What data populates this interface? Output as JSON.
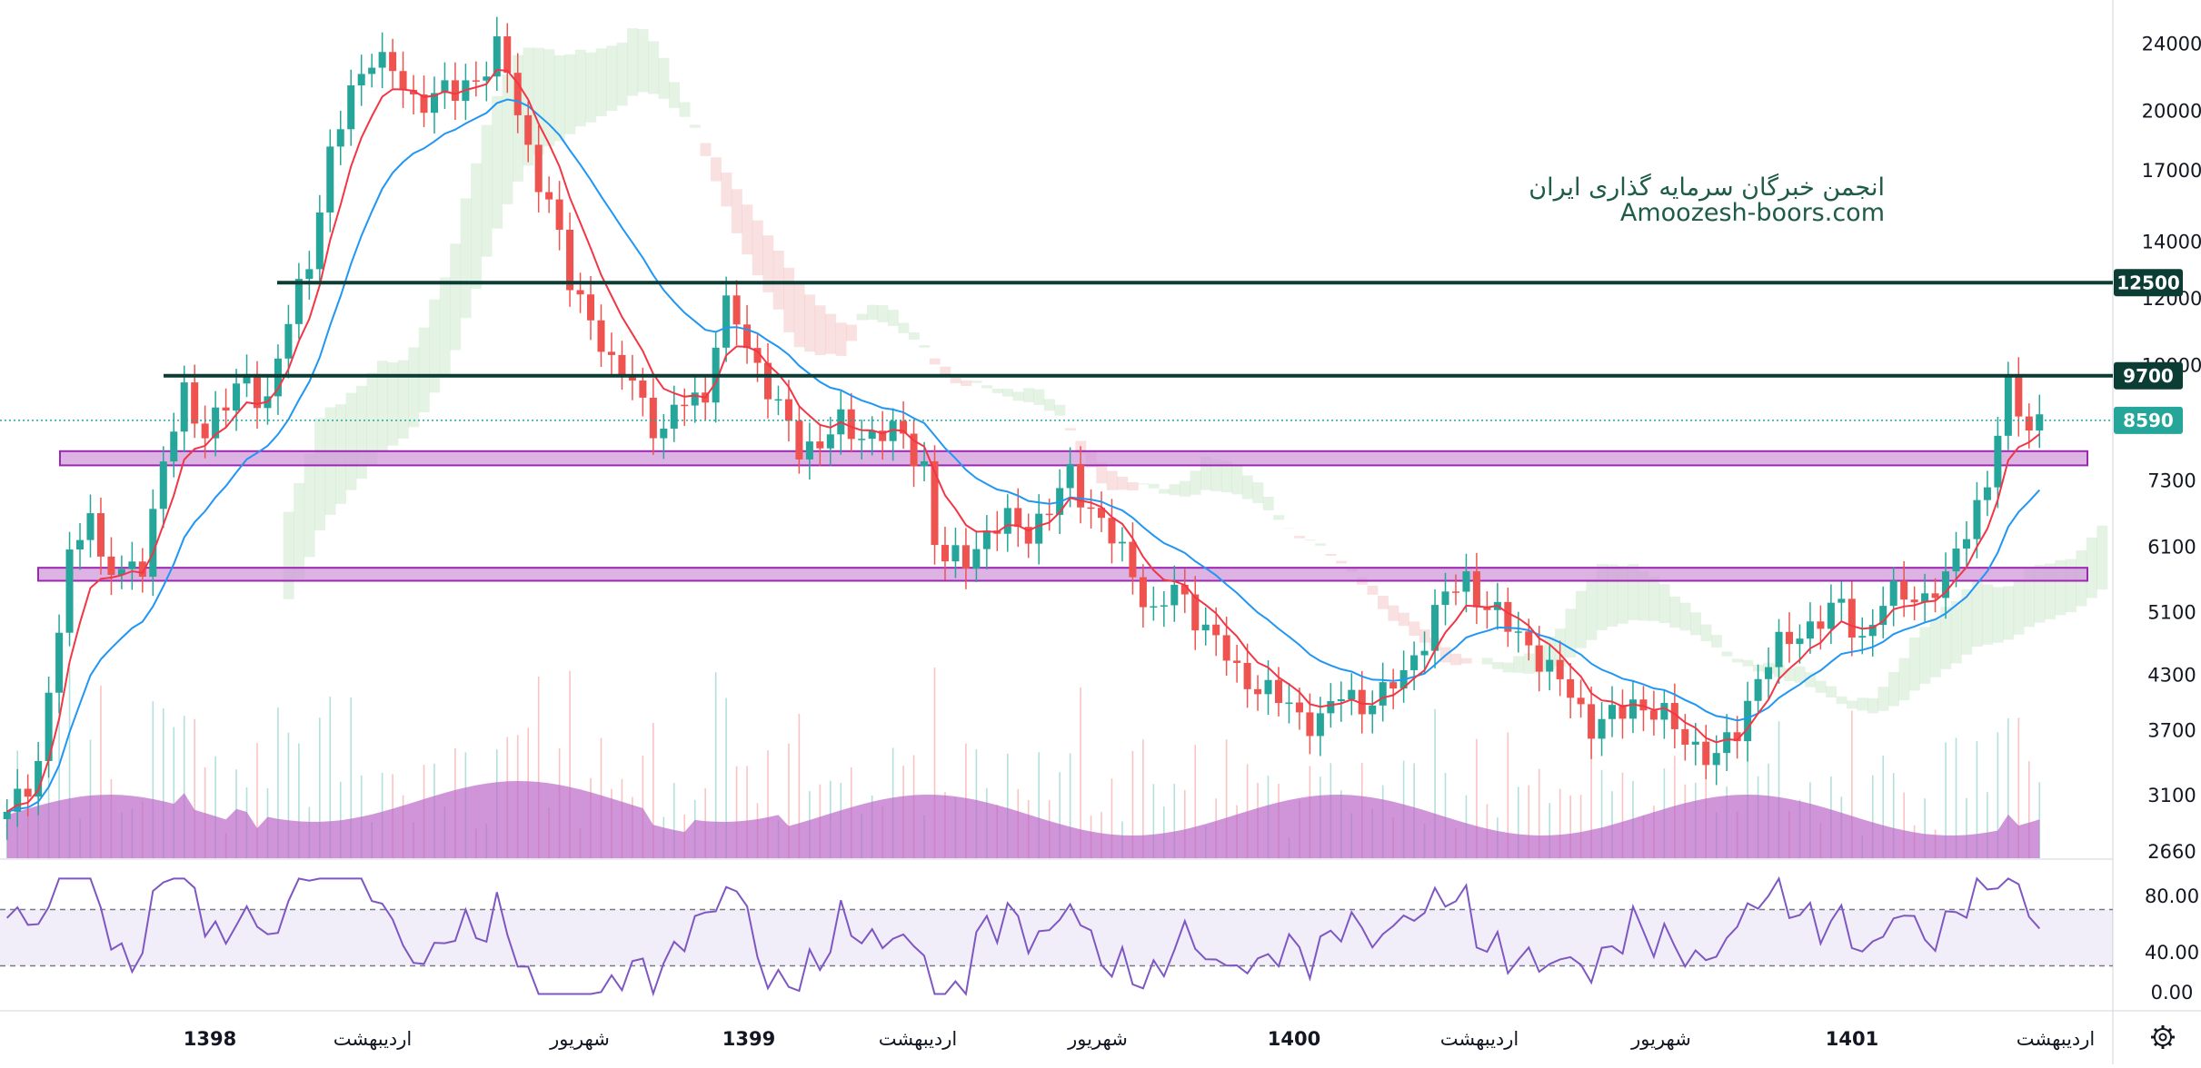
{
  "watermark": {
    "line1": "انجمن خبرگان سرمایه گذاری ایران",
    "line2": "Amoozesh-boors.com"
  },
  "colors": {
    "up": "#26a69a",
    "down": "#ef5350",
    "ema_fast": "#f23645",
    "ema_slow": "#2196f3",
    "resistance": "#0b3d35",
    "zone_fill": "#ce93d8",
    "zone_stroke": "#9c27b0",
    "rsi": "#7e57c2",
    "cloud_green": "#a5d6a7",
    "cloud_red": "#ef9a9a",
    "volume_ma": "#ba68c8",
    "last_price": "#26a69a"
  },
  "price_axis": {
    "ticks": [
      "24000",
      "20000",
      "17000",
      "14000",
      "12000",
      "10000",
      "8590",
      "7300",
      "6100",
      "5100",
      "4300",
      "3700",
      "3100",
      "2660"
    ]
  },
  "badges": [
    {
      "label": "12500",
      "kind": "resistance"
    },
    {
      "label": "9700",
      "kind": "resistance"
    },
    {
      "label": "8590",
      "kind": "last"
    }
  ],
  "rsi_axis": {
    "ticks": [
      "80.00",
      "40.00",
      "0.00"
    ]
  },
  "time_axis": {
    "labels": [
      "1398",
      "اردیبهشت",
      "شهریور",
      "1399",
      "اردیبهشت",
      "شهریور",
      "1400",
      "اردیبهشت",
      "شهریور",
      "1401",
      "اردیبهشت"
    ]
  },
  "chart_data": {
    "type": "candlestick",
    "scale": "log",
    "ylim": [
      2600,
      27000
    ],
    "levels": [
      {
        "name": "resistance",
        "value": 12500
      },
      {
        "name": "resistance",
        "value": 9700
      }
    ],
    "zones": [
      {
        "low": 7600,
        "high": 7900
      },
      {
        "low": 5550,
        "high": 5750
      }
    ],
    "last_price": 8590,
    "price_path": [
      [
        0,
        2900
      ],
      [
        3,
        3400
      ],
      [
        6,
        5800
      ],
      [
        8,
        6900
      ],
      [
        9,
        5800
      ],
      [
        11,
        5600
      ],
      [
        13,
        5900
      ],
      [
        15,
        7600
      ],
      [
        17,
        9200
      ],
      [
        19,
        8400
      ],
      [
        21,
        8900
      ],
      [
        23,
        9700
      ],
      [
        25,
        9000
      ],
      [
        27,
        11200
      ],
      [
        29,
        13500
      ],
      [
        31,
        17500
      ],
      [
        33,
        21000
      ],
      [
        35,
        23500
      ],
      [
        37,
        22000
      ],
      [
        39,
        20500
      ],
      [
        41,
        21000
      ],
      [
        43,
        20800
      ],
      [
        45,
        22000
      ],
      [
        47,
        23500
      ],
      [
        48,
        22000
      ],
      [
        50,
        18000
      ],
      [
        52,
        15500
      ],
      [
        54,
        12500
      ],
      [
        56,
        11500
      ],
      [
        58,
        9800
      ],
      [
        60,
        9700
      ],
      [
        62,
        8500
      ],
      [
        63,
        8200
      ],
      [
        65,
        9200
      ],
      [
        67,
        9200
      ],
      [
        68,
        10600
      ],
      [
        69,
        11500
      ],
      [
        70,
        11300
      ],
      [
        72,
        10000
      ],
      [
        74,
        8800
      ],
      [
        76,
        8000
      ],
      [
        78,
        8100
      ],
      [
        80,
        8450
      ],
      [
        82,
        8300
      ],
      [
        84,
        8300
      ],
      [
        86,
        8200
      ],
      [
        88,
        7600
      ],
      [
        89,
        6200
      ],
      [
        90,
        5800
      ],
      [
        92,
        5950
      ],
      [
        94,
        6300
      ],
      [
        96,
        6500
      ],
      [
        98,
        6400
      ],
      [
        100,
        6700
      ],
      [
        102,
        7400
      ],
      [
        104,
        6800
      ],
      [
        106,
        6200
      ],
      [
        108,
        5700
      ],
      [
        110,
        5050
      ],
      [
        112,
        5400
      ],
      [
        114,
        5100
      ],
      [
        116,
        4700
      ],
      [
        118,
        4300
      ],
      [
        120,
        4200
      ],
      [
        122,
        4000
      ],
      [
        124,
        3850
      ],
      [
        126,
        3800
      ],
      [
        128,
        4050
      ],
      [
        130,
        4000
      ],
      [
        132,
        4050
      ],
      [
        134,
        4300
      ],
      [
        136,
        4800
      ],
      [
        138,
        5300
      ],
      [
        140,
        5600
      ],
      [
        142,
        5150
      ],
      [
        144,
        4900
      ],
      [
        146,
        4700
      ],
      [
        148,
        4300
      ],
      [
        150,
        4100
      ],
      [
        152,
        3750
      ],
      [
        154,
        3800
      ],
      [
        156,
        4000
      ],
      [
        158,
        3900
      ],
      [
        160,
        3700
      ],
      [
        162,
        3550
      ],
      [
        164,
        3400
      ],
      [
        166,
        3700
      ],
      [
        168,
        4300
      ],
      [
        170,
        4600
      ],
      [
        172,
        4850
      ],
      [
        174,
        5000
      ],
      [
        176,
        5150
      ],
      [
        178,
        4750
      ],
      [
        180,
        5200
      ],
      [
        182,
        5400
      ],
      [
        184,
        5300
      ],
      [
        186,
        5500
      ],
      [
        188,
        6500
      ],
      [
        190,
        7200
      ],
      [
        191,
        8200
      ],
      [
        192,
        9300
      ],
      [
        193,
        9000
      ],
      [
        194,
        8500
      ],
      [
        195,
        8590
      ]
    ]
  }
}
